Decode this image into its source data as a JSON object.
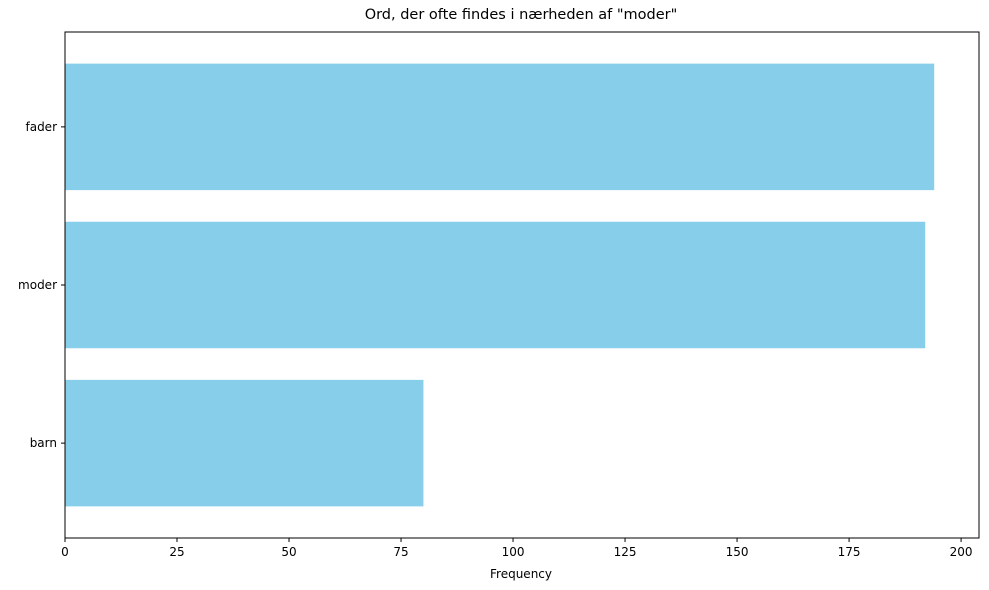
{
  "chart_data": {
    "type": "bar",
    "orientation": "horizontal",
    "title": "Ord, der ofte findes i nærheden af \"moder\"",
    "xlabel": "Frequency",
    "ylabel": "",
    "categories": [
      "barn",
      "moder",
      "fader"
    ],
    "values": [
      80,
      192,
      194
    ],
    "xlim": [
      0,
      204
    ],
    "xticks": [
      0,
      25,
      50,
      75,
      100,
      125,
      150,
      175,
      200
    ],
    "grid": false,
    "legend": "none",
    "bar_color": "#87CEEB"
  }
}
